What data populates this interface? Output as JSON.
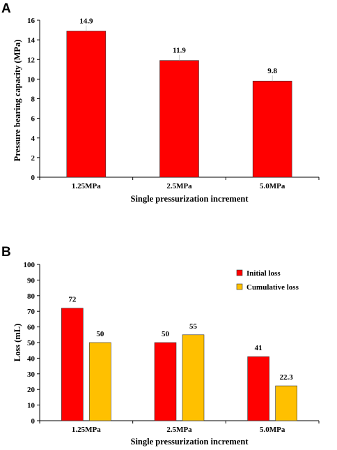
{
  "colors": {
    "initial": "#ff0000",
    "cumulative": "#ffc000"
  },
  "chart_data": [
    {
      "panel": "A",
      "type": "bar",
      "title": "",
      "xlabel": "Single pressurization increment",
      "ylabel": "Pressure bearing capacity (MPa)",
      "categories": [
        "1.25MPa",
        "2.5MPa",
        "5.0MPa"
      ],
      "series": [
        {
          "values": [
            14.9,
            11.9,
            9.8
          ],
          "labels": [
            "14.9",
            "11.9",
            "9.8"
          ],
          "color": "#ff0000"
        }
      ],
      "ylim": [
        0,
        16
      ],
      "yticks": [
        0,
        2,
        4,
        6,
        8,
        10,
        12,
        14,
        16
      ],
      "grid": false,
      "legend": "none"
    },
    {
      "panel": "B",
      "type": "bar",
      "title": "",
      "xlabel": "Single pressurization increment",
      "ylabel": "Loss (mL)",
      "categories": [
        "1.25MPa",
        "2.5MPa",
        "5.0MPa"
      ],
      "series": [
        {
          "name": "Initial loss",
          "values": [
            72,
            50,
            41
          ],
          "labels": [
            "72",
            "50",
            "41"
          ],
          "color": "#ff0000"
        },
        {
          "name": "Cumulative loss",
          "values": [
            50,
            55,
            22.3
          ],
          "labels": [
            "50",
            "55",
            "22.3"
          ],
          "color": "#ffc000"
        }
      ],
      "ylim": [
        0,
        100
      ],
      "yticks": [
        0,
        10,
        20,
        30,
        40,
        50,
        60,
        70,
        80,
        90,
        100
      ],
      "grid": false,
      "legend": "top-right"
    }
  ]
}
